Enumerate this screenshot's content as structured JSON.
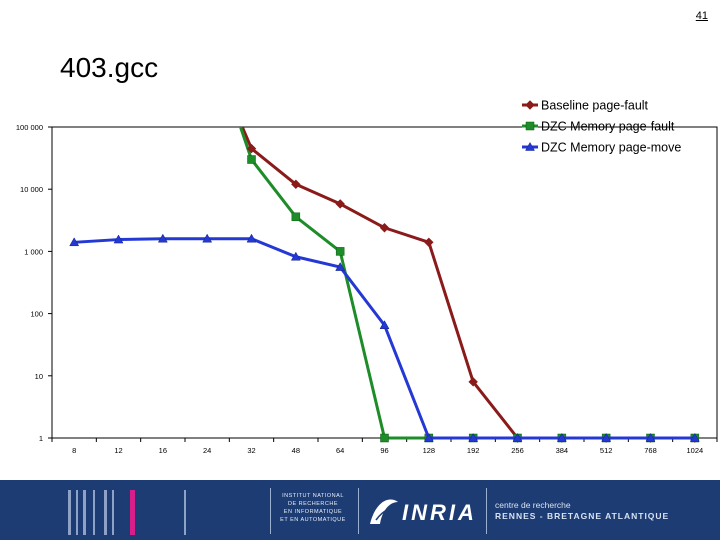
{
  "slide": {
    "number": "41",
    "title": "403.gcc"
  },
  "footer": {
    "institute": [
      "INSTITUT NATIONAL",
      "DE RECHERCHE",
      "EN INFORMATIQUE",
      "ET EN AUTOMATIQUE"
    ],
    "logo": "INRIA",
    "centre_line1": "centre de recherche",
    "centre_line2": "RENNES - BRETAGNE ATLANTIQUE"
  },
  "chart_data": {
    "type": "line",
    "title": "",
    "xlabel": "",
    "ylabel": "",
    "y_scale": "log",
    "ylim": [
      1,
      100000
    ],
    "grid": false,
    "legend_position": "top-right",
    "categories": [
      "8",
      "12",
      "16",
      "24",
      "32",
      "48",
      "64",
      "96",
      "128",
      "192",
      "256",
      "384",
      "512",
      "768",
      "1024"
    ],
    "y_ticks": [
      {
        "value": 100000,
        "label": "100 000"
      },
      {
        "value": 10000,
        "label": "10 000"
      },
      {
        "value": 1000,
        "label": "1 000"
      },
      {
        "value": 100,
        "label": "100"
      },
      {
        "value": 10,
        "label": "10"
      },
      {
        "value": 1,
        "label": "1"
      }
    ],
    "series": [
      {
        "name": "Baseline page-fault",
        "color": "#8b1a1a",
        "marker": "diamond",
        "values": [
          null,
          null,
          null,
          null,
          45000,
          12000,
          5800,
          2400,
          1400,
          8,
          1,
          1,
          1,
          1,
          1
        ]
      },
      {
        "name": "DZC Memory page-fault",
        "color": "#1e8c28",
        "marker": "square",
        "values": [
          null,
          null,
          null,
          null,
          30000,
          3600,
          1000,
          1,
          1,
          1,
          1,
          1,
          1,
          1,
          1
        ]
      },
      {
        "name": "DZC Memory page-move",
        "color": "#2438d4",
        "marker": "triangle",
        "values": [
          1400,
          1550,
          1600,
          1600,
          1600,
          820,
          560,
          65,
          1,
          1,
          1,
          1,
          1,
          1,
          1
        ]
      }
    ],
    "segments_to_top": [
      {
        "series": 0,
        "from_value": 45000,
        "from_index": 4,
        "top_index": 3.6
      },
      {
        "series": 1,
        "from_value": 30000,
        "from_index": 4,
        "top_index": 3.6
      }
    ]
  }
}
